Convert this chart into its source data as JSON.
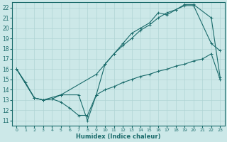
{
  "xlabel": "Humidex (Indice chaleur)",
  "bg_color": "#cce8e8",
  "line_color": "#1a6b6b",
  "grid_color": "#b0d4d4",
  "xlim": [
    -0.5,
    23.5
  ],
  "ylim": [
    10.5,
    22.5
  ],
  "xticks": [
    0,
    1,
    2,
    3,
    4,
    5,
    6,
    7,
    8,
    9,
    10,
    11,
    12,
    13,
    14,
    15,
    16,
    17,
    18,
    19,
    20,
    21,
    22,
    23
  ],
  "yticks": [
    11,
    12,
    13,
    14,
    15,
    16,
    17,
    18,
    19,
    20,
    21,
    22
  ],
  "line1_x": [
    0,
    1,
    2,
    3,
    4,
    5,
    6,
    7,
    8,
    9,
    10,
    11,
    12,
    13,
    14,
    15,
    16,
    17,
    18,
    19,
    20,
    21,
    22,
    23
  ],
  "line1_y": [
    16.0,
    14.7,
    13.2,
    13.0,
    13.1,
    12.8,
    12.2,
    11.5,
    11.5,
    13.5,
    14.0,
    14.3,
    14.7,
    15.0,
    15.3,
    15.5,
    15.8,
    16.0,
    16.3,
    16.5,
    16.8,
    17.0,
    17.5,
    15.0
  ],
  "line2_x": [
    0,
    2,
    3,
    4,
    5,
    7,
    8,
    9,
    10,
    11,
    12,
    13,
    14,
    15,
    16,
    17,
    18,
    19,
    20,
    22,
    23
  ],
  "line2_y": [
    16.0,
    13.2,
    13.0,
    13.1,
    13.5,
    13.5,
    11.0,
    13.5,
    16.5,
    17.5,
    18.5,
    19.5,
    20.0,
    20.5,
    21.5,
    21.3,
    21.8,
    22.2,
    22.2,
    18.5,
    17.8
  ],
  "line3_x": [
    0,
    2,
    3,
    5,
    9,
    10,
    11,
    12,
    13,
    14,
    15,
    16,
    17,
    18,
    19,
    20,
    22,
    23
  ],
  "line3_y": [
    16.0,
    13.2,
    13.0,
    13.5,
    15.5,
    16.5,
    17.5,
    18.3,
    19.0,
    19.8,
    20.3,
    21.0,
    21.5,
    21.8,
    22.3,
    22.3,
    21.0,
    15.2
  ]
}
